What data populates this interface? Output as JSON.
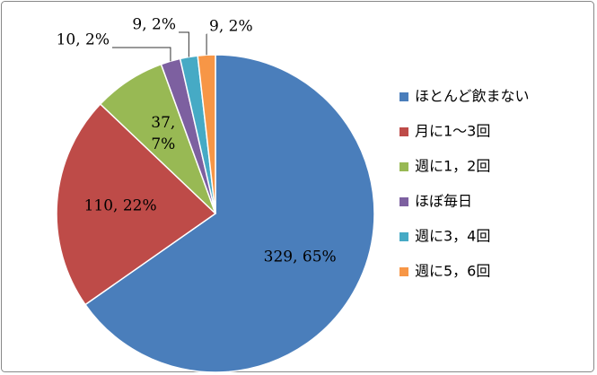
{
  "chart_data": {
    "type": "pie",
    "categories": [
      "ほとんど飲まない",
      "月に1～3回",
      "週に1，2回",
      "ほぼ毎日",
      "週に3，4回",
      "週に5，6回"
    ],
    "values": [
      329,
      110,
      37,
      10,
      9,
      9
    ],
    "value_labels": [
      "329, 65%",
      "110, 22%",
      "37, 7%",
      "10, 2%",
      "9, 2%",
      "9, 2%"
    ],
    "colors": [
      "#4a7ebb",
      "#be4b48",
      "#98b954",
      "#7d60a0",
      "#46aac5",
      "#f79646"
    ],
    "legend": "right"
  }
}
